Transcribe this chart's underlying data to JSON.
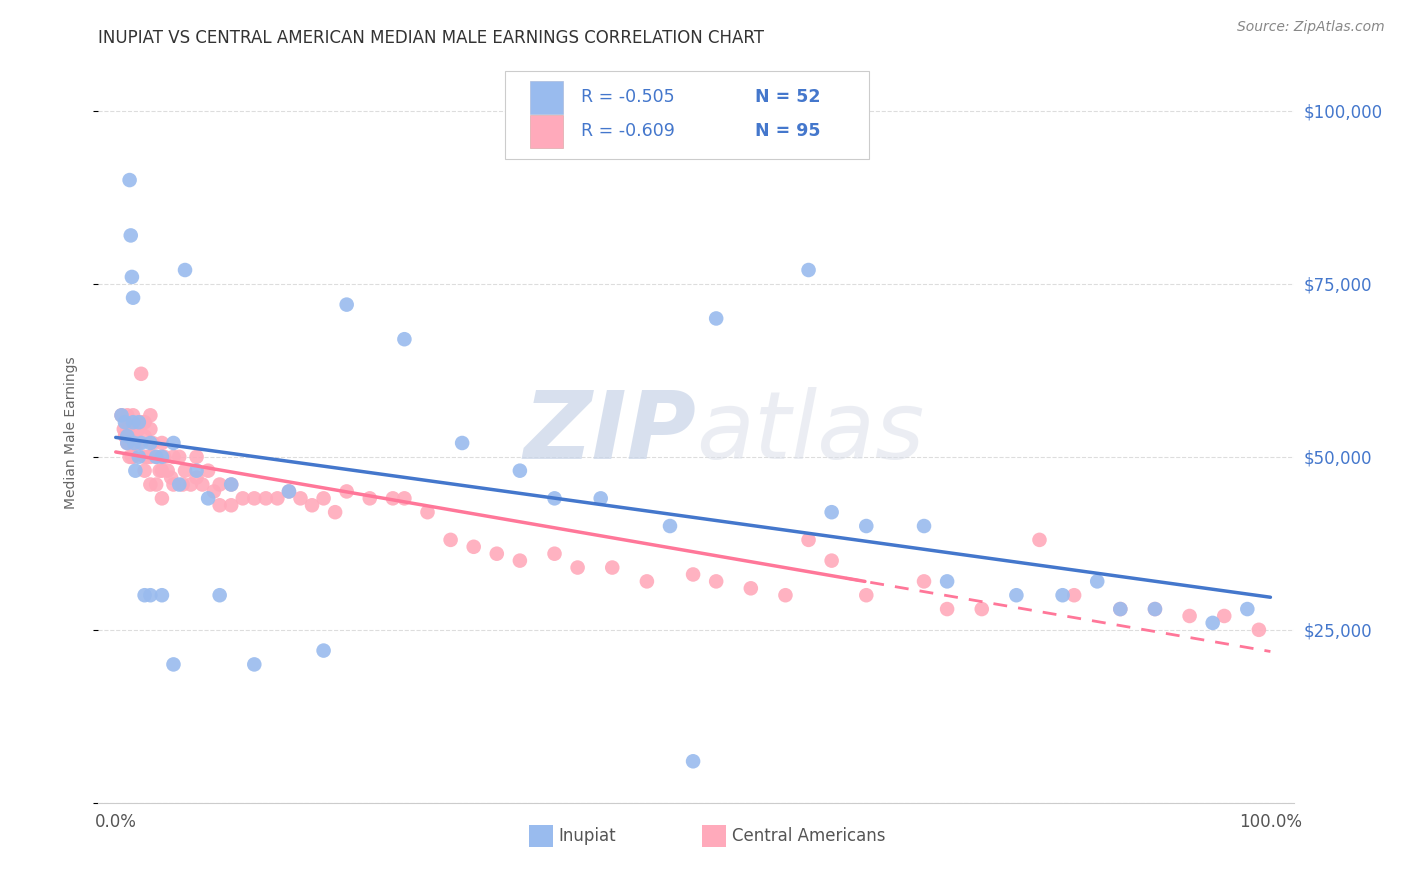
{
  "title": "INUPIAT VS CENTRAL AMERICAN MEDIAN MALE EARNINGS CORRELATION CHART",
  "source": "Source: ZipAtlas.com",
  "ylabel": "Median Male Earnings",
  "y_ticks": [
    0,
    25000,
    50000,
    75000,
    100000
  ],
  "y_tick_labels": [
    "",
    "$25,000",
    "$50,000",
    "$75,000",
    "$100,000"
  ],
  "inupiat_color": "#99bbee",
  "central_american_color": "#ffaabb",
  "inupiat_line_color": "#4477cc",
  "central_american_line_color": "#ff7799",
  "legend_text_color": "#4477cc",
  "watermark_color": "#e8eef8",
  "r_inupiat": "-0.505",
  "n_inupiat": "52",
  "r_central": "-0.609",
  "n_central": "95",
  "inupiat_x": [
    0.005,
    0.008,
    0.01,
    0.01,
    0.012,
    0.013,
    0.014,
    0.015,
    0.015,
    0.016,
    0.017,
    0.02,
    0.02,
    0.022,
    0.025,
    0.03,
    0.03,
    0.035,
    0.04,
    0.04,
    0.05,
    0.05,
    0.055,
    0.06,
    0.07,
    0.08,
    0.09,
    0.1,
    0.12,
    0.15,
    0.18,
    0.2,
    0.25,
    0.3,
    0.35,
    0.38,
    0.42,
    0.48,
    0.5,
    0.52,
    0.6,
    0.62,
    0.65,
    0.7,
    0.72,
    0.78,
    0.82,
    0.85,
    0.87,
    0.9,
    0.95,
    0.98
  ],
  "inupiat_y": [
    56000,
    55000,
    53000,
    52000,
    90000,
    82000,
    76000,
    73000,
    55000,
    52000,
    48000,
    55000,
    50000,
    52000,
    30000,
    52000,
    30000,
    50000,
    50000,
    30000,
    52000,
    20000,
    46000,
    77000,
    48000,
    44000,
    30000,
    46000,
    20000,
    45000,
    22000,
    72000,
    67000,
    52000,
    48000,
    44000,
    44000,
    40000,
    6000,
    70000,
    77000,
    42000,
    40000,
    40000,
    32000,
    30000,
    30000,
    32000,
    28000,
    28000,
    26000,
    28000
  ],
  "central_american_x": [
    0.005,
    0.007,
    0.008,
    0.01,
    0.01,
    0.01,
    0.011,
    0.012,
    0.012,
    0.013,
    0.014,
    0.015,
    0.015,
    0.015,
    0.015,
    0.016,
    0.017,
    0.018,
    0.02,
    0.02,
    0.022,
    0.023,
    0.025,
    0.025,
    0.025,
    0.025,
    0.028,
    0.03,
    0.03,
    0.03,
    0.03,
    0.032,
    0.035,
    0.035,
    0.038,
    0.04,
    0.04,
    0.04,
    0.042,
    0.045,
    0.048,
    0.05,
    0.05,
    0.055,
    0.058,
    0.06,
    0.065,
    0.07,
    0.07,
    0.075,
    0.08,
    0.085,
    0.09,
    0.09,
    0.1,
    0.1,
    0.11,
    0.12,
    0.13,
    0.14,
    0.15,
    0.16,
    0.17,
    0.18,
    0.19,
    0.2,
    0.22,
    0.24,
    0.25,
    0.27,
    0.29,
    0.31,
    0.33,
    0.35,
    0.38,
    0.4,
    0.43,
    0.46,
    0.5,
    0.52,
    0.55,
    0.58,
    0.6,
    0.62,
    0.65,
    0.7,
    0.72,
    0.75,
    0.8,
    0.83,
    0.87,
    0.9,
    0.93,
    0.96,
    0.99
  ],
  "central_american_y": [
    56000,
    54000,
    53000,
    56000,
    54000,
    52000,
    54000,
    52000,
    50000,
    53000,
    50000,
    56000,
    54000,
    52000,
    50000,
    53000,
    52000,
    54000,
    54000,
    52000,
    62000,
    55000,
    55000,
    53000,
    50000,
    48000,
    50000,
    56000,
    54000,
    50000,
    46000,
    52000,
    50000,
    46000,
    48000,
    52000,
    48000,
    44000,
    50000,
    48000,
    47000,
    50000,
    46000,
    50000,
    46000,
    48000,
    46000,
    50000,
    47000,
    46000,
    48000,
    45000,
    46000,
    43000,
    46000,
    43000,
    44000,
    44000,
    44000,
    44000,
    45000,
    44000,
    43000,
    44000,
    42000,
    45000,
    44000,
    44000,
    44000,
    42000,
    38000,
    37000,
    36000,
    35000,
    36000,
    34000,
    34000,
    32000,
    33000,
    32000,
    31000,
    30000,
    38000,
    35000,
    30000,
    32000,
    28000,
    28000,
    38000,
    30000,
    28000,
    28000,
    27000,
    27000,
    25000
  ]
}
